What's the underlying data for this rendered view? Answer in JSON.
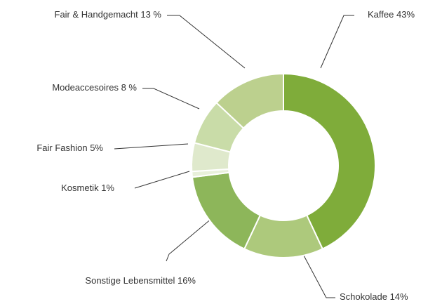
{
  "chart_data": {
    "type": "pie",
    "categories": [
      "Kaffee",
      "Schokolade",
      "Sonstige Lebensmittel",
      "Kosmetik",
      "Fair Fashion",
      "Modeaccesoires",
      "Fair & Handgemacht"
    ],
    "values": [
      43,
      14,
      16,
      1,
      5,
      8,
      13
    ],
    "value_labels": [
      "43%",
      "14%",
      "16%",
      "1%",
      "5%",
      "8 %",
      "13 %"
    ],
    "colors": [
      "#7fac3a",
      "#adc97c",
      "#8db65a",
      "#e8f0da",
      "#dfe9cc",
      "#c9dca8",
      "#bcd08e"
    ]
  }
}
